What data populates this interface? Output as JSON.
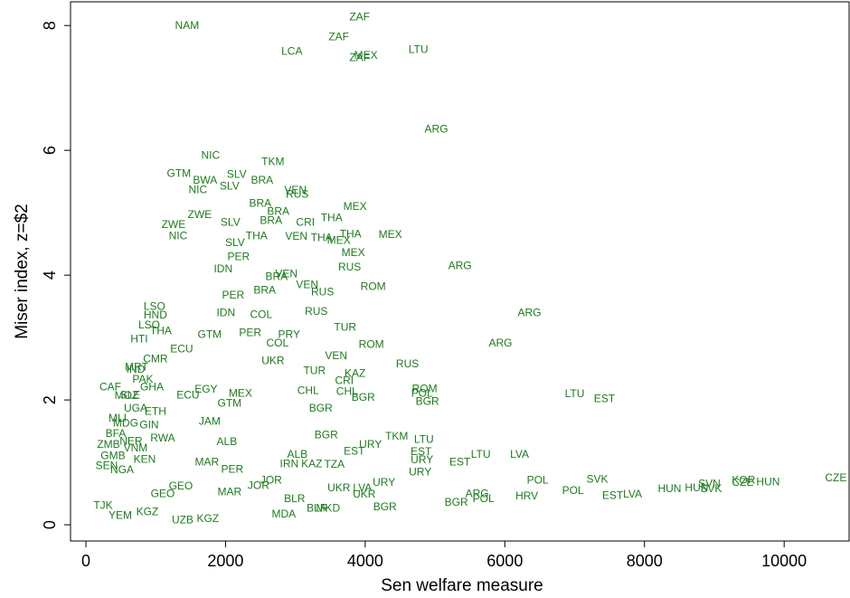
{
  "chart_data": {
    "type": "scatter",
    "x_label": "Sen welfare measure",
    "y_label": "Miser index, z=$2",
    "xlim": [
      -220,
      10930
    ],
    "ylim": [
      -0.26,
      8.38
    ],
    "xticks": [
      0,
      2000,
      4000,
      6000,
      8000,
      10000
    ],
    "yticks": [
      0,
      2,
      4,
      6,
      8
    ],
    "series": [
      {
        "color": "#1e7a1e",
        "labels": [
          "NAM",
          "ZAF",
          "ZAF",
          "LCA",
          "MEX",
          "ZAF",
          "LTU",
          "ARG",
          "NIC",
          "TKM",
          "GTM",
          "SLV",
          "BWA",
          "BRA",
          "NIC",
          "SLV",
          "VEN",
          "RUS",
          "BRA",
          "BRA",
          "MEX",
          "ZWE",
          "BRA",
          "CRI",
          "THA",
          "ZWE",
          "NIC",
          "SLV",
          "THA",
          "MEX",
          "THA",
          "MEX",
          "VEN",
          "THA",
          "SLV",
          "MEX",
          "PER",
          "RUS",
          "ARG",
          "IDN",
          "VEN",
          "BRA",
          "VEN",
          "RUS",
          "ROM",
          "PER",
          "BRA",
          "COL",
          "IDN",
          "LSO",
          "HND",
          "RUS",
          "TUR",
          "ARG",
          "LSO",
          "THA",
          "GTM",
          "PER",
          "PRY",
          "COL",
          "ROM",
          "ARG",
          "VEN",
          "RUS",
          "KAZ",
          "ROM",
          "POL",
          "BGR",
          "LTU",
          "EST",
          "CAF",
          "MOZ",
          "BGR",
          "BGR",
          "BGR",
          "TKM",
          "LTU",
          "URY",
          "EST",
          "LTU",
          "EST",
          "URY",
          "URY",
          "EST",
          "ALB",
          "MAR",
          "PER",
          "ALB",
          "IRN",
          "KAZ",
          "TZA",
          "JOR",
          "JOR",
          "MAR",
          "POL",
          "SVK",
          "POL",
          "HRV",
          "EST",
          "LVA",
          "HUN",
          "HUN",
          "SVN",
          "SVK",
          "KOR",
          "CZE",
          "HUN",
          "CZE",
          "ARG",
          "POL",
          "BGR",
          "BGR",
          "MKD",
          "BLR",
          "BLR",
          "MDA",
          "UKR",
          "URY",
          "LVA",
          "UKR",
          "UZB",
          "KGZ",
          "KGZ",
          "GEO",
          "GEO",
          "YEM",
          "TJK",
          "ZMB",
          "GMB",
          "VNM",
          "KEN",
          "SEN",
          "NGA",
          "MLI",
          "MDG",
          "ETH",
          "BFA",
          "UGA",
          "GIN",
          "RWA",
          "NER",
          "PAK",
          "IND",
          "MRT",
          "CMR",
          "GHA",
          "SLE",
          "ECU",
          "EGY",
          "ECU",
          "GTM",
          "JAM",
          "MEX",
          "CHL",
          "CHL",
          "UKR",
          "TUR",
          "CRI",
          "HTI",
          "LVA"
        ],
        "x": [
          1449,
          3920,
          3622,
          2950,
          4010,
          3920,
          4761,
          5019,
          1785,
          2678,
          1332,
          2160,
          1708,
          2523,
          1604,
          2057,
          3001,
          3027,
          2497,
          2755,
          3855,
          1630,
          2652,
          3144,
          3519,
          1255,
          1320,
          2070,
          3790,
          4360,
          3376,
          3622,
          3014,
          2445,
          2135,
          3829,
          2186,
          3777,
          5356,
          1966,
          2872,
          2730,
          3170,
          3389,
          4114,
          2109,
          2561,
          2510,
          2005,
          983,
          996,
          3299,
          3713,
          6352,
          906,
          1074,
          1772,
          2354,
          2911,
          2743,
          4088,
          5938,
          3583,
          4605,
          3855,
          4851,
          4814,
          4891,
          7000,
          7426,
          349,
          582,
          3364,
          3973,
          3442,
          4451,
          4840,
          4076,
          4801,
          5655,
          5357,
          4814,
          4788,
          3843,
          2019,
          1734,
          2096,
          3028,
          2912,
          3235,
          3559,
          2653,
          2472,
          2057,
          6470,
          7324,
          6975,
          6315,
          7544,
          7829,
          8359,
          8747,
          8929,
          8954,
          9420,
          9407,
          9770,
          10740,
          5603,
          5694,
          5305,
          4283,
          3468,
          2989,
          3313,
          2834,
          3623,
          4270,
          3960,
          3986,
          1385,
          1747,
          880,
          1359,
          1100,
          492,
          246,
          324,
          388,
          712,
          841,
          298,
          518,
          453,
          569,
          996,
          427,
          712,
          906,
          1100,
          647,
          815,
          712,
          725,
          996,
          945,
          634,
          1372,
          1721,
          1462,
          2057,
          1773,
          2213,
          3740,
          3183,
          2679,
          3274,
          3701,
          763,
          6210
        ],
        "values": [
          7.99,
          8.13,
          7.81,
          7.58,
          7.51,
          7.48,
          7.61,
          6.33,
          5.91,
          5.81,
          5.62,
          5.61,
          5.51,
          5.51,
          5.36,
          5.42,
          5.35,
          5.29,
          5.14,
          5.01,
          5.09,
          4.96,
          4.87,
          4.84,
          4.91,
          4.8,
          4.62,
          4.84,
          4.65,
          4.64,
          4.59,
          4.55,
          4.61,
          4.62,
          4.51,
          4.35,
          4.29,
          4.12,
          4.14,
          4.09,
          4.01,
          3.97,
          3.84,
          3.72,
          3.81,
          3.67,
          3.75,
          3.36,
          3.39,
          3.49,
          3.35,
          3.41,
          3.16,
          3.39,
          3.19,
          3.1,
          3.04,
          3.07,
          3.04,
          2.9,
          2.88,
          2.9,
          2.7,
          2.57,
          2.42,
          2.17,
          2.1,
          1.97,
          2.09,
          2.01,
          2.2,
          2.06,
          1.86,
          2.03,
          1.43,
          1.41,
          1.36,
          1.28,
          1.16,
          1.12,
          1.0,
          1.03,
          0.84,
          1.17,
          1.32,
          1.0,
          0.88,
          1.12,
          0.97,
          0.97,
          0.96,
          0.71,
          0.62,
          0.52,
          0.71,
          0.72,
          0.54,
          0.45,
          0.46,
          0.48,
          0.57,
          0.58,
          0.65,
          0.57,
          0.71,
          0.67,
          0.68,
          0.74,
          0.49,
          0.41,
          0.35,
          0.28,
          0.26,
          0.41,
          0.26,
          0.16,
          0.58,
          0.67,
          0.58,
          0.48,
          0.07,
          0.09,
          0.2,
          0.61,
          0.49,
          0.14,
          0.3,
          1.28,
          1.1,
          1.22,
          1.04,
          0.94,
          0.87,
          1.7,
          1.62,
          1.81,
          1.45,
          1.86,
          1.59,
          1.38,
          1.33,
          2.32,
          2.48,
          2.52,
          2.65,
          2.2,
          2.07,
          2.81,
          2.16,
          2.07,
          1.94,
          1.65,
          2.1,
          2.13,
          2.14,
          2.62,
          2.46,
          2.3,
          2.97,
          1.12
        ]
      }
    ]
  }
}
